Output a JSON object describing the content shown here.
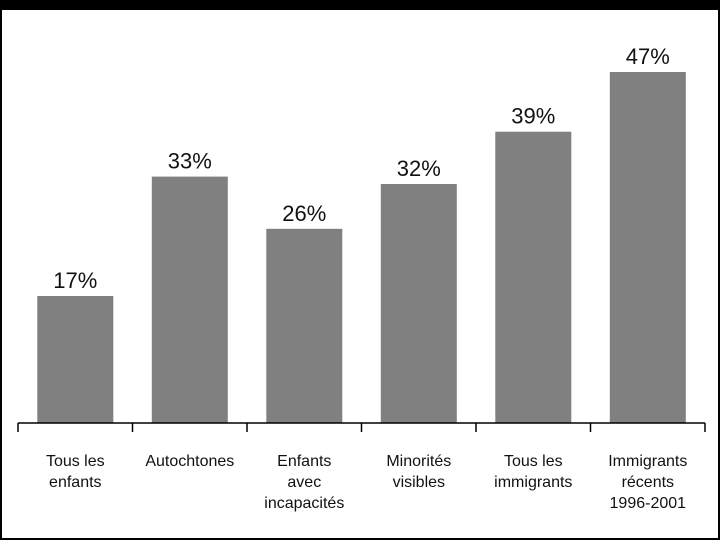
{
  "chart_data": {
    "type": "bar",
    "categories": [
      [
        "Tous les",
        "enfants"
      ],
      [
        "Autochtones"
      ],
      [
        "Enfants",
        "avec",
        "incapacités"
      ],
      [
        "Minorités",
        "visibles"
      ],
      [
        "Tous les",
        "immigrants"
      ],
      [
        "Immigrants",
        "récents",
        "1996-2001"
      ]
    ],
    "values": [
      17,
      33,
      26,
      32,
      39,
      47
    ],
    "data_labels": [
      "17%",
      "33%",
      "26%",
      "32%",
      "39%",
      "47%"
    ],
    "ylim": [
      0,
      47
    ],
    "bar_color": "#808080",
    "axis_color": "#000000",
    "grid": false,
    "legend": "none"
  }
}
